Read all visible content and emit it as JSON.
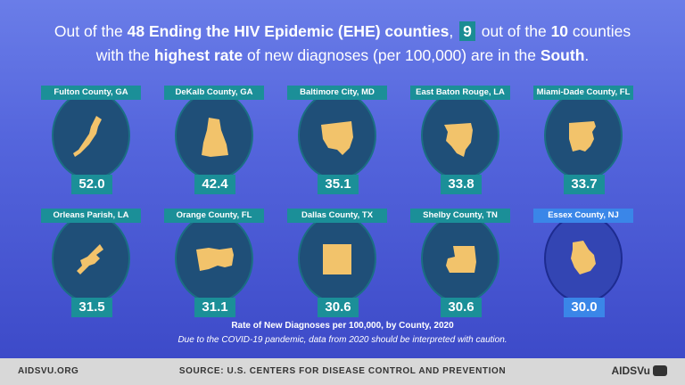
{
  "headline": {
    "part1": "Out of the ",
    "bold1": "48 Ending the HIV Epidemic (EHE) counties",
    "part2": ", ",
    "boxed": "9",
    "part3": " out of the ",
    "bold2": "10",
    "part4": " counties",
    "part5": "with the ",
    "bold3": "highest rate",
    "part6": " of new diagnoses (per 100,000) are in the ",
    "bold4": "South",
    "part7": "."
  },
  "counties": [
    {
      "name": "Fulton County, GA",
      "rate": "52.0",
      "highlight": false,
      "icon": "fulton-county-shape"
    },
    {
      "name": "DeKalb County, GA",
      "rate": "42.4",
      "highlight": false,
      "icon": "dekalb-county-shape"
    },
    {
      "name": "Baltimore City, MD",
      "rate": "35.1",
      "highlight": false,
      "icon": "baltimore-city-shape"
    },
    {
      "name": "East Baton Rouge, LA",
      "rate": "33.8",
      "highlight": false,
      "icon": "east-baton-rouge-shape"
    },
    {
      "name": "Miami-Dade County, FL",
      "rate": "33.7",
      "highlight": false,
      "icon": "miami-dade-county-shape"
    },
    {
      "name": "Orleans Parish, LA",
      "rate": "31.5",
      "highlight": false,
      "icon": "orleans-parish-shape"
    },
    {
      "name": "Orange County, FL",
      "rate": "31.1",
      "highlight": false,
      "icon": "orange-county-shape"
    },
    {
      "name": "Dallas County, TX",
      "rate": "30.6",
      "highlight": false,
      "icon": "dallas-county-shape"
    },
    {
      "name": "Shelby County, TN",
      "rate": "30.6",
      "highlight": false,
      "icon": "shelby-county-shape"
    },
    {
      "name": "Essex County, NJ",
      "rate": "30.0",
      "highlight": true,
      "icon": "essex-county-shape"
    }
  ],
  "caption": "Rate of New Diagnoses per 100,000, by County, 2020",
  "note": "Due to the COVID-19 pandemic, data from 2020 should be interpreted with caution.",
  "footer": {
    "site": "AIDSVU.ORG",
    "source": "SOURCE: U.S. CENTERS FOR DISEASE CONTROL AND PREVENTION",
    "logo": "AIDSVu"
  },
  "colors": {
    "teal": "#1b8f98",
    "highlight_blue": "#3a86e8",
    "shape_fill": "#f2c36b",
    "circle_fill": "#1f4f78"
  }
}
